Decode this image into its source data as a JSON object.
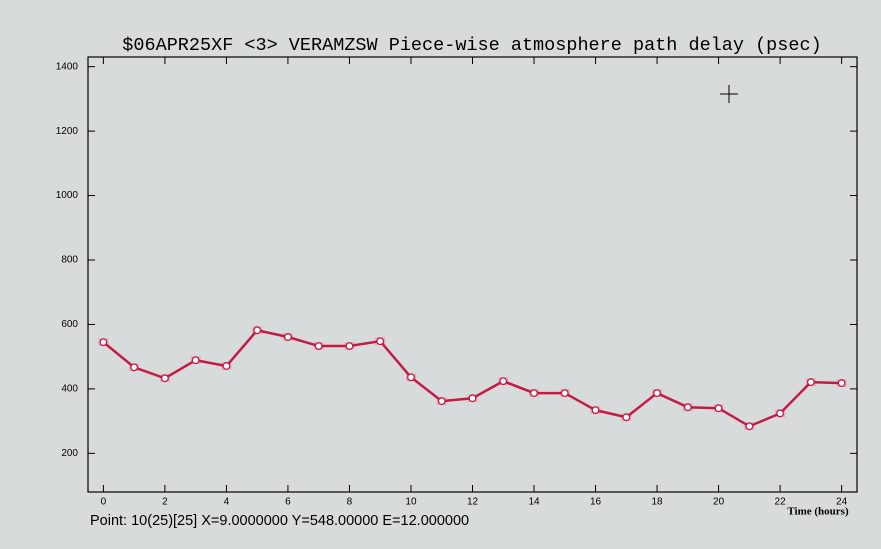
{
  "chart_data": {
    "type": "line",
    "title": "$06APR25XF <3>  VERAMZSW  Piece-wise atmosphere path delay (psec)",
    "x_label": "Time (hours)",
    "status": "Point: 10(25)[25] X=9.0000000 Y=548.00000 E=12.000000",
    "x": [
      0,
      1,
      2,
      3,
      4,
      5,
      6,
      7,
      8,
      9,
      10,
      11,
      12,
      13,
      14,
      15,
      16,
      17,
      18,
      19,
      20,
      21,
      22,
      23,
      24
    ],
    "series": [
      {
        "color": "#c41a44",
        "values": [
          545,
          467,
          433,
          489,
          471,
          582,
          561,
          533,
          533,
          548,
          436,
          362,
          371,
          424,
          387,
          387,
          334,
          312,
          387,
          343,
          340,
          284,
          324,
          421,
          418
        ],
        "errors": [
          12,
          12,
          12,
          12,
          12,
          12,
          12,
          12,
          12,
          12,
          12,
          12,
          12,
          12,
          12,
          12,
          12,
          12,
          12,
          12,
          12,
          12,
          12,
          12,
          12
        ]
      }
    ],
    "xlim": [
      -0.5,
      24.5
    ],
    "ylim": [
      80,
      1430
    ],
    "xticks": [
      0,
      2,
      4,
      6,
      8,
      10,
      12,
      14,
      16,
      18,
      20,
      22,
      24
    ],
    "yticks": [
      200,
      400,
      600,
      800,
      1000,
      1200,
      1400
    ]
  }
}
